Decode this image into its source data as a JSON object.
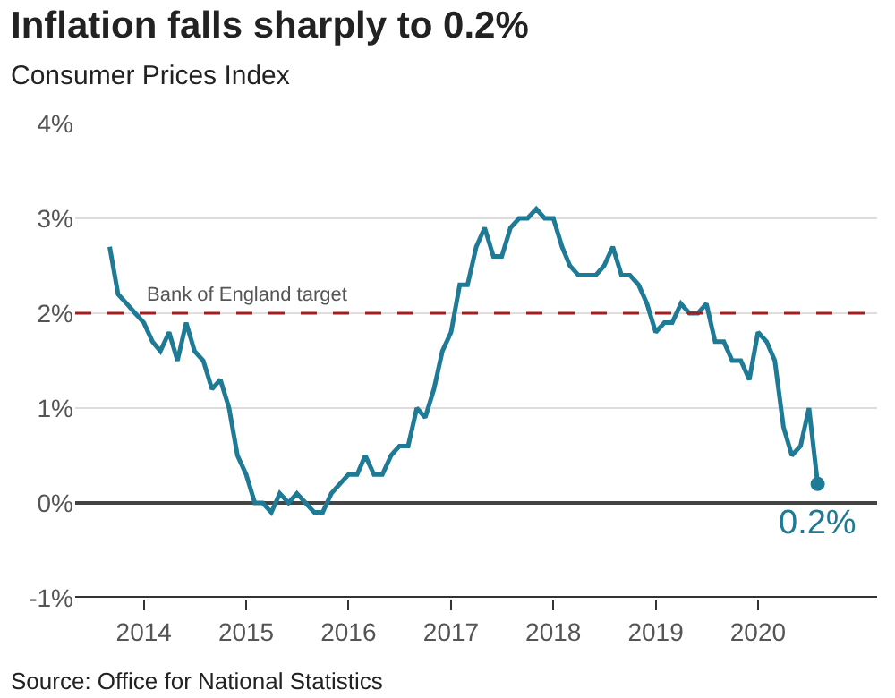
{
  "chart_data": {
    "type": "line",
    "title": "Inflation falls sharply to 0.2%",
    "subtitle": "Consumer Prices Index",
    "x": [
      "2013-09",
      "2013-10",
      "2013-11",
      "2013-12",
      "2014-01",
      "2014-02",
      "2014-03",
      "2014-04",
      "2014-05",
      "2014-06",
      "2014-07",
      "2014-08",
      "2014-09",
      "2014-10",
      "2014-11",
      "2014-12",
      "2015-01",
      "2015-02",
      "2015-03",
      "2015-04",
      "2015-05",
      "2015-06",
      "2015-07",
      "2015-08",
      "2015-09",
      "2015-10",
      "2015-11",
      "2015-12",
      "2016-01",
      "2016-02",
      "2016-03",
      "2016-04",
      "2016-05",
      "2016-06",
      "2016-07",
      "2016-08",
      "2016-09",
      "2016-10",
      "2016-11",
      "2016-12",
      "2017-01",
      "2017-02",
      "2017-03",
      "2017-04",
      "2017-05",
      "2017-06",
      "2017-07",
      "2017-08",
      "2017-09",
      "2017-10",
      "2017-11",
      "2017-12",
      "2018-01",
      "2018-02",
      "2018-03",
      "2018-04",
      "2018-05",
      "2018-06",
      "2018-07",
      "2018-08",
      "2018-09",
      "2018-10",
      "2018-11",
      "2018-12",
      "2019-01",
      "2019-02",
      "2019-03",
      "2019-04",
      "2019-05",
      "2019-06",
      "2019-07",
      "2019-08",
      "2019-09",
      "2019-10",
      "2019-11",
      "2019-12",
      "2020-01",
      "2020-02",
      "2020-03",
      "2020-04",
      "2020-05",
      "2020-06",
      "2020-07",
      "2020-08"
    ],
    "series": [
      {
        "color": "#1f7a96",
        "values": [
          2.7,
          2.2,
          2.1,
          2.0,
          1.9,
          1.7,
          1.6,
          1.8,
          1.5,
          1.9,
          1.6,
          1.5,
          1.2,
          1.3,
          1.0,
          0.5,
          0.3,
          0.0,
          0.0,
          -0.1,
          0.1,
          0.0,
          0.1,
          0.0,
          -0.1,
          -0.1,
          0.1,
          0.2,
          0.3,
          0.3,
          0.5,
          0.3,
          0.3,
          0.5,
          0.6,
          0.6,
          1.0,
          0.9,
          1.2,
          1.6,
          1.8,
          2.3,
          2.3,
          2.7,
          2.9,
          2.6,
          2.6,
          2.9,
          3.0,
          3.0,
          3.1,
          3.0,
          3.0,
          2.7,
          2.5,
          2.4,
          2.4,
          2.4,
          2.5,
          2.7,
          2.4,
          2.4,
          2.3,
          2.1,
          1.8,
          1.9,
          1.9,
          2.1,
          2.0,
          2.0,
          2.1,
          1.7,
          1.7,
          1.5,
          1.5,
          1.3,
          1.8,
          1.7,
          1.5,
          0.8,
          0.5,
          0.6,
          1.0,
          0.2
        ]
      }
    ],
    "xlim": [
      "2013-05-01",
      "2021-03-01"
    ],
    "xticks": [
      {
        "value": "2014-01-01",
        "label": "2014"
      },
      {
        "value": "2015-01-01",
        "label": "2015"
      },
      {
        "value": "2016-01-01",
        "label": "2016"
      },
      {
        "value": "2017-01-01",
        "label": "2017"
      },
      {
        "value": "2018-01-01",
        "label": "2018"
      },
      {
        "value": "2019-01-01",
        "label": "2019"
      },
      {
        "value": "2020-01-01",
        "label": "2020"
      }
    ],
    "ylim": [
      -1,
      4
    ],
    "yticks": [
      {
        "value": -1,
        "label": "-1%"
      },
      {
        "value": 0,
        "label": "0%"
      },
      {
        "value": 1,
        "label": "1%"
      },
      {
        "value": 2,
        "label": "2%"
      },
      {
        "value": 3,
        "label": "3%"
      },
      {
        "value": 4,
        "label": "4%"
      }
    ],
    "ref_lines": [
      {
        "axis": "y",
        "value": 2,
        "label": "Bank of England target",
        "color": "#a31f1f",
        "line_style": "dashed"
      }
    ],
    "annotations": [
      {
        "text": "0.2%",
        "x": "2020-08",
        "y": 0.2
      },
      "Source: Office for National Statistics"
    ],
    "grid": "y",
    "marker": "none",
    "line_style": "solid"
  }
}
